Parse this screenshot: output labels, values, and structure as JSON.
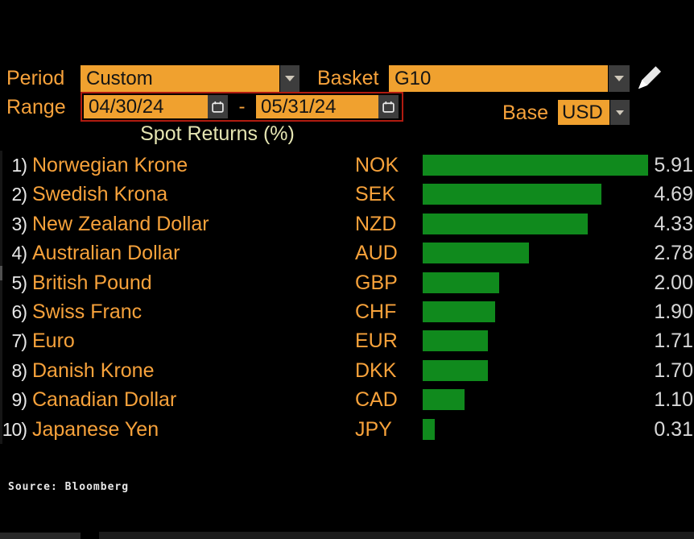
{
  "controls": {
    "period_label": "Period",
    "period_value": "Custom",
    "basket_label": "Basket",
    "basket_value": "G10",
    "range_label": "Range",
    "range_start": "04/30/24",
    "range_separator": "-",
    "range_end": "05/31/24",
    "base_label": "Base",
    "base_value": "USD"
  },
  "chart_data": {
    "type": "bar",
    "orientation": "horizontal",
    "title": "Spot Returns (%)",
    "ranks": [
      "1)",
      "2)",
      "3)",
      "4)",
      "5)",
      "6)",
      "7)",
      "8)",
      "9)",
      "10)"
    ],
    "categories": [
      "Norwegian Krone",
      "Swedish Krona",
      "New Zealand Dollar",
      "Australian Dollar",
      "British Pound",
      "Swiss Franc",
      "Euro",
      "Danish Krone",
      "Canadian Dollar",
      "Japanese Yen"
    ],
    "codes": [
      "NOK",
      "SEK",
      "NZD",
      "AUD",
      "GBP",
      "CHF",
      "EUR",
      "DKK",
      "CAD",
      "JPY"
    ],
    "values": [
      5.91,
      4.69,
      4.33,
      2.78,
      2.0,
      1.9,
      1.71,
      1.7,
      1.1,
      0.31
    ],
    "xlim": [
      0,
      5.91
    ],
    "bar_color": "#108a1d",
    "grid": false,
    "legend": "none"
  },
  "footer": {
    "source": "Source: Bloomberg"
  },
  "colors": {
    "accent_orange": "#f7a23b",
    "field_orange": "#f0a12f",
    "bar_green": "#108a1d",
    "range_border_red": "#b01b10",
    "title_yellow": "#e5e5b2",
    "background": "#000000"
  }
}
